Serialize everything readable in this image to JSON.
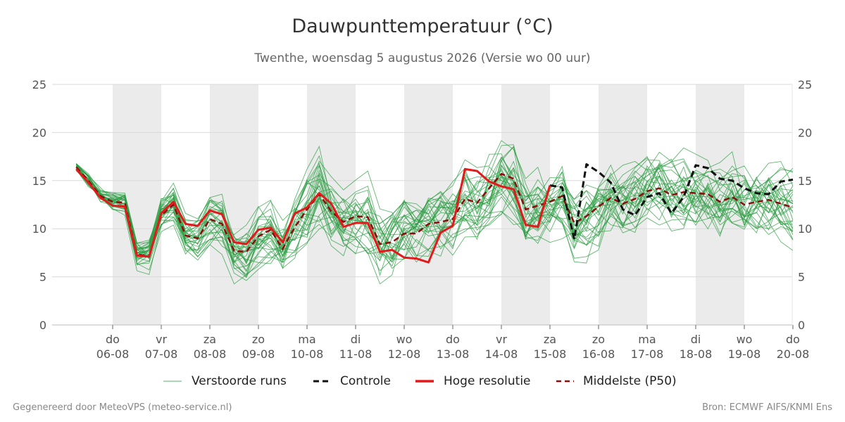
{
  "title": "Dauwpunttemperatuur (°C)",
  "subtitle": "Twenthe, woensdag  5 augustus 2026 (Versie wo 00 uur)",
  "footer_left": "Gegenereerd door MeteoVPS (meteo-service.nl)",
  "footer_right": "Bron: ECMWF AIFS/KNMI Ens",
  "legend": [
    {
      "label": "Verstoorde runs",
      "color": "#2e9e44",
      "style": "thin"
    },
    {
      "label": "Controle",
      "color": "#111111",
      "style": "dashed"
    },
    {
      "label": "Hoge resolutie",
      "color": "#e31a1c",
      "style": "solid"
    },
    {
      "label": "Middelste (P50)",
      "color": "#8b0d0d",
      "style": "dashed"
    }
  ],
  "chart_data": {
    "type": "line",
    "title": "Dauwpunttemperatuur (°C)",
    "xlabel": "",
    "ylabel": "",
    "ylim": [
      0,
      25
    ],
    "yticks": [
      0,
      5,
      10,
      15,
      20,
      25
    ],
    "x_start_day_offset": 0,
    "x_day_range": [
      -0.75,
      14.0
    ],
    "x_ticks": [
      {
        "day": "do",
        "date": "06-08"
      },
      {
        "day": "vr",
        "date": "07-08"
      },
      {
        "day": "za",
        "date": "08-08"
      },
      {
        "day": "zo",
        "date": "09-08"
      },
      {
        "day": "ma",
        "date": "10-08"
      },
      {
        "day": "di",
        "date": "11-08"
      },
      {
        "day": "wo",
        "date": "12-08"
      },
      {
        "day": "do",
        "date": "13-08"
      },
      {
        "day": "vr",
        "date": "14-08"
      },
      {
        "day": "za",
        "date": "15-08"
      },
      {
        "day": "zo",
        "date": "16-08"
      },
      {
        "day": "ma",
        "date": "17-08"
      },
      {
        "day": "di",
        "date": "18-08"
      },
      {
        "day": "wo",
        "date": "19-08"
      },
      {
        "day": "do",
        "date": "20-08"
      }
    ],
    "shaded_days": [
      "06-08",
      "08-08",
      "10-08",
      "12-08",
      "14-08",
      "16-08",
      "18-08"
    ],
    "grid": true,
    "legend_position": "bottom",
    "x_step_hours": 6,
    "series": [
      {
        "name": "Hoge resolutie",
        "color": "#e31a1c",
        "values": [
          16.2,
          14.8,
          13.2,
          12.4,
          12.3,
          7.2,
          7.1,
          11.6,
          12.8,
          10.5,
          10.3,
          11.9,
          11.5,
          8.6,
          8.4,
          9.9,
          10.1,
          8.6,
          11.6,
          12.2,
          13.7,
          12.6,
          10.2,
          10.6,
          10.6,
          7.6,
          7.8,
          7.0,
          6.9,
          6.5,
          9.6,
          10.3,
          16.2,
          16.0,
          14.9,
          14.4,
          14.1,
          10.4,
          10.2,
          14.5
        ]
      },
      {
        "name": "Controle",
        "color": "#111111",
        "values": [
          null,
          null,
          null,
          null,
          null,
          null,
          null,
          null,
          null,
          null,
          null,
          null,
          null,
          null,
          null,
          null,
          null,
          null,
          null,
          null,
          null,
          null,
          null,
          null,
          null,
          null,
          null,
          null,
          null,
          null,
          null,
          null,
          null,
          null,
          null,
          null,
          null,
          null,
          null,
          14.5,
          14.3,
          8.9,
          16.7,
          15.9,
          14.8,
          12.0,
          11.4,
          13.3,
          13.7,
          11.6,
          13.3,
          16.6,
          16.3,
          15.2,
          15.0,
          14.2,
          13.7,
          13.6,
          14.9,
          15.1
        ]
      },
      {
        "name": "Middelste (P50)",
        "color": "#8b0d0d",
        "values": [
          16.4,
          15.0,
          13.4,
          12.8,
          12.7,
          7.3,
          7.2,
          11.4,
          12.5,
          9.3,
          9.0,
          11.0,
          10.5,
          7.7,
          7.6,
          9.2,
          9.9,
          7.9,
          10.2,
          12.0,
          13.6,
          11.8,
          10.7,
          11.3,
          11.2,
          8.4,
          8.6,
          9.5,
          9.5,
          10.5,
          10.7,
          11.0,
          13.1,
          12.7,
          14.2,
          15.7,
          15.2,
          12.0,
          12.4,
          12.8,
          13.4,
          10.6,
          11.3,
          12.3,
          13.2,
          12.6,
          13.1,
          13.9,
          14.2,
          13.5,
          13.8,
          13.7,
          13.6,
          12.8,
          13.3,
          12.5,
          12.8,
          13.0,
          12.6,
          12.2
        ]
      }
    ],
    "ensemble": {
      "name": "Verstoorde runs",
      "color": "#2e9e44",
      "member_count": 32,
      "note": "spread around the median series"
    }
  }
}
